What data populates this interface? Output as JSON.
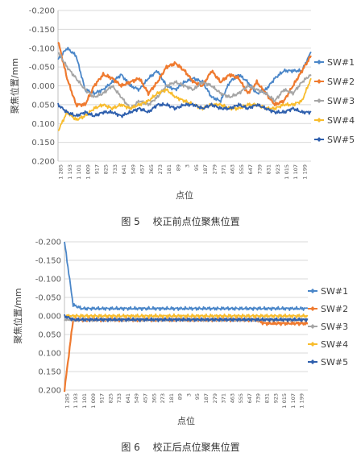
{
  "figures": [
    {
      "caption": "图 5　 校正前点位聚焦位置",
      "chart_data": {
        "type": "line",
        "ylabel": "聚焦位置/mm",
        "xlabel": "点位",
        "ylim": [
          -0.2,
          0.2
        ],
        "y_reversed": true,
        "y_ticks": [
          "-0.200",
          "-0.150",
          "-0.100",
          "-0.050",
          "0.000",
          "0.050",
          "0.100",
          "0.150",
          "0.200"
        ],
        "x_ticks": [
          "1 285",
          "1 193",
          "1 101",
          "1 009",
          "917",
          "825",
          "733",
          "641",
          "549",
          "457",
          "365",
          "273",
          "181",
          "89",
          "3",
          "95",
          "187",
          "279",
          "371",
          "463",
          "555",
          "647",
          "739",
          "831",
          "923",
          "1 015",
          "1 107",
          "1 199"
        ],
        "grid": true,
        "legend_position": "right",
        "series": [
          {
            "name": "SW#1",
            "color": "#4a86c8",
            "values": [
              -0.07,
              -0.1,
              -0.08,
              0.01,
              0.02,
              0.01,
              -0.01,
              -0.03,
              0.0,
              0.01,
              -0.02,
              -0.04,
              0.0,
              0.01,
              -0.01,
              -0.02,
              -0.01,
              0.03,
              0.04,
              -0.01,
              -0.03,
              -0.01,
              0.02,
              0.01,
              -0.02,
              -0.04,
              -0.04,
              -0.04,
              -0.09
            ]
          },
          {
            "name": "SW#2",
            "color": "#ef7a2f",
            "values": [
              -0.12,
              -0.02,
              0.05,
              0.05,
              0.0,
              -0.03,
              -0.02,
              0.0,
              -0.01,
              -0.02,
              0.02,
              -0.01,
              -0.05,
              -0.06,
              -0.04,
              -0.01,
              0.0,
              -0.04,
              -0.01,
              -0.03,
              -0.02,
              0.02,
              -0.01,
              0.02,
              0.05,
              0.04,
              0.0,
              -0.04,
              -0.08
            ]
          },
          {
            "name": "SW#3",
            "color": "#a5a5a5",
            "values": [
              -0.09,
              -0.05,
              -0.02,
              0.01,
              0.03,
              0.02,
              0.0,
              0.03,
              0.06,
              0.04,
              0.05,
              0.03,
              0.0,
              -0.01,
              0.0,
              0.01,
              -0.01,
              0.0,
              0.02,
              0.03,
              0.02,
              0.0,
              0.01,
              0.02,
              0.04,
              0.01,
              0.02,
              -0.01,
              -0.03
            ]
          },
          {
            "name": "SW#4",
            "color": "#f8bc2c",
            "values": [
              0.12,
              0.07,
              0.09,
              0.08,
              0.06,
              0.05,
              0.06,
              0.05,
              0.06,
              0.05,
              0.04,
              0.02,
              0.01,
              0.03,
              0.04,
              0.05,
              0.06,
              0.05,
              0.05,
              0.06,
              0.06,
              0.05,
              0.05,
              0.06,
              0.06,
              0.05,
              0.05,
              0.04,
              -0.02
            ]
          },
          {
            "name": "SW#5",
            "color": "#2e5fad",
            "values": [
              0.05,
              0.07,
              0.08,
              0.07,
              0.08,
              0.07,
              0.07,
              0.08,
              0.07,
              0.06,
              0.07,
              0.05,
              0.05,
              0.06,
              0.05,
              0.05,
              0.06,
              0.05,
              0.06,
              0.06,
              0.05,
              0.06,
              0.05,
              0.06,
              0.07,
              0.07,
              0.06,
              0.07,
              0.07
            ]
          }
        ]
      }
    },
    {
      "caption": "图 6　 校正后点位聚焦位置",
      "chart_data": {
        "type": "line",
        "ylabel": "聚焦位置/mm",
        "xlabel": "点位",
        "ylim": [
          -0.2,
          0.2
        ],
        "y_reversed": true,
        "y_ticks": [
          "-0.200",
          "-0.150",
          "-0.100",
          "-0.050",
          "0.000",
          "0.050",
          "0.100",
          "0.150",
          "0.200"
        ],
        "x_ticks": [
          "1 285",
          "1 193",
          "1 101",
          "1 009",
          "917",
          "825",
          "733",
          "641",
          "549",
          "457",
          "365",
          "273",
          "181",
          "89",
          "3",
          "95",
          "187",
          "279",
          "371",
          "463",
          "555",
          "647",
          "739",
          "831",
          "923",
          "1 015",
          "1 107",
          "1 199"
        ],
        "grid": true,
        "legend_position": "right",
        "series": [
          {
            "name": "SW#1",
            "color": "#4a86c8",
            "values": [
              -0.2,
              -0.03,
              -0.02,
              -0.02,
              -0.02,
              -0.02,
              -0.02,
              -0.02,
              -0.02,
              -0.02,
              -0.02,
              -0.02,
              -0.02,
              -0.02,
              -0.02,
              -0.02,
              -0.02,
              -0.02,
              -0.02,
              -0.02,
              -0.02,
              -0.02,
              -0.02,
              -0.02,
              -0.02,
              -0.02,
              -0.02,
              -0.02,
              -0.02
            ]
          },
          {
            "name": "SW#2",
            "color": "#ef7a2f",
            "values": [
              0.2,
              0.01,
              0.01,
              0.01,
              0.01,
              0.01,
              0.01,
              0.01,
              0.01,
              0.01,
              0.01,
              0.01,
              0.01,
              0.01,
              0.01,
              0.01,
              0.01,
              0.01,
              0.01,
              0.01,
              0.01,
              0.01,
              0.01,
              0.02,
              0.02,
              0.02,
              0.02,
              0.02,
              0.02
            ]
          },
          {
            "name": "SW#3",
            "color": "#a5a5a5",
            "values": [
              0.01,
              0.01,
              0.01,
              0.01,
              0.01,
              0.01,
              0.01,
              0.01,
              0.01,
              0.01,
              0.01,
              0.01,
              0.01,
              0.01,
              0.01,
              0.01,
              0.01,
              0.01,
              0.01,
              0.01,
              0.01,
              0.01,
              0.01,
              0.01,
              0.01,
              0.01,
              0.01,
              0.01,
              0.01
            ]
          },
          {
            "name": "SW#4",
            "color": "#f8bc2c",
            "values": [
              0.0,
              0.0,
              0.0,
              0.0,
              0.0,
              0.0,
              0.0,
              0.0,
              0.0,
              0.0,
              0.0,
              0.0,
              0.0,
              0.0,
              0.0,
              0.0,
              0.0,
              0.0,
              0.0,
              0.0,
              0.0,
              0.0,
              0.0,
              0.0,
              0.0,
              0.0,
              0.0,
              0.0,
              0.0
            ]
          },
          {
            "name": "SW#5",
            "color": "#2e5fad",
            "values": [
              0.0,
              0.01,
              0.01,
              0.01,
              0.01,
              0.01,
              0.01,
              0.01,
              0.01,
              0.01,
              0.01,
              0.01,
              0.01,
              0.01,
              0.01,
              0.01,
              0.01,
              0.01,
              0.01,
              0.01,
              0.01,
              0.01,
              0.01,
              0.01,
              0.01,
              0.01,
              0.01,
              0.01,
              0.01
            ]
          }
        ]
      }
    }
  ]
}
